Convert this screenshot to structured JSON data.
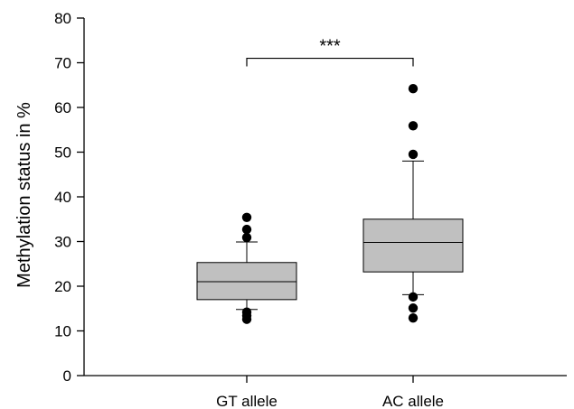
{
  "chart_data": {
    "type": "box",
    "title": "",
    "xlabel": "",
    "ylabel": "Methylation status in %",
    "ylim": [
      0,
      80
    ],
    "yticks": [
      0,
      10,
      20,
      30,
      40,
      50,
      60,
      70,
      80
    ],
    "categories": [
      "GT allele",
      "AC allele"
    ],
    "boxes": [
      {
        "category": "GT allele",
        "whisker_low": 14.8,
        "q1": 17.0,
        "median": 21.0,
        "q3": 25.3,
        "whisker_high": 29.9,
        "outliers": [
          12.6,
          13.4,
          14.2,
          30.9,
          32.7,
          35.4
        ]
      },
      {
        "category": "AC allele",
        "whisker_low": 18.1,
        "q1": 23.2,
        "median": 29.8,
        "q3": 35.0,
        "whisker_high": 48.0,
        "outliers": [
          12.9,
          15.1,
          17.6,
          49.5,
          55.9,
          64.2
        ]
      }
    ],
    "significance": {
      "label": "***",
      "between": [
        "GT allele",
        "AC allele"
      ],
      "y": 71
    },
    "box_color": "#c0c0c0",
    "grid": false
  }
}
